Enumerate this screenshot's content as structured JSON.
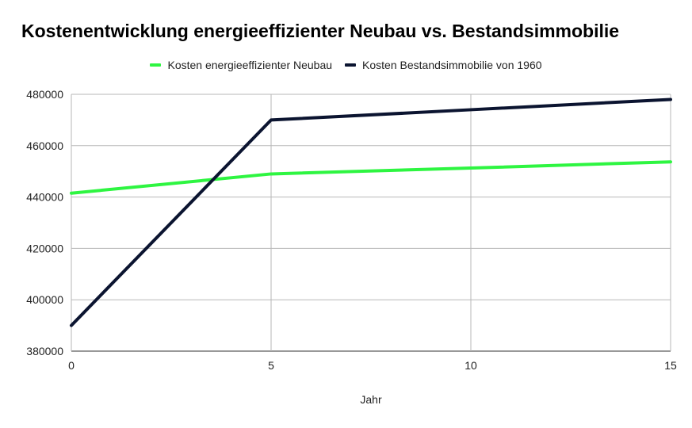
{
  "chart_data": {
    "type": "line",
    "title": "Kostenentwicklung energieeffizienter Neubau vs. Bestandsimmobilie",
    "xlabel": "Jahr",
    "ylabel": "",
    "x": [
      0,
      5,
      10,
      15
    ],
    "xlim": [
      0,
      15
    ],
    "ylim": [
      380000,
      480000
    ],
    "xticks": [
      "0",
      "5",
      "10",
      "15"
    ],
    "yticks": [
      "380000",
      "400000",
      "420000",
      "440000",
      "460000",
      "480000"
    ],
    "grid": true,
    "legend_position": "top",
    "series": [
      {
        "name": "Kosten energieeffizienter Neubau",
        "color": "#2ef541",
        "values": [
          441500,
          449000,
          451300,
          453700
        ]
      },
      {
        "name": "Kosten Bestandsimmobilie von 1960",
        "color": "#0b1430",
        "values": [
          390000,
          470000,
          474000,
          478000
        ]
      }
    ]
  }
}
